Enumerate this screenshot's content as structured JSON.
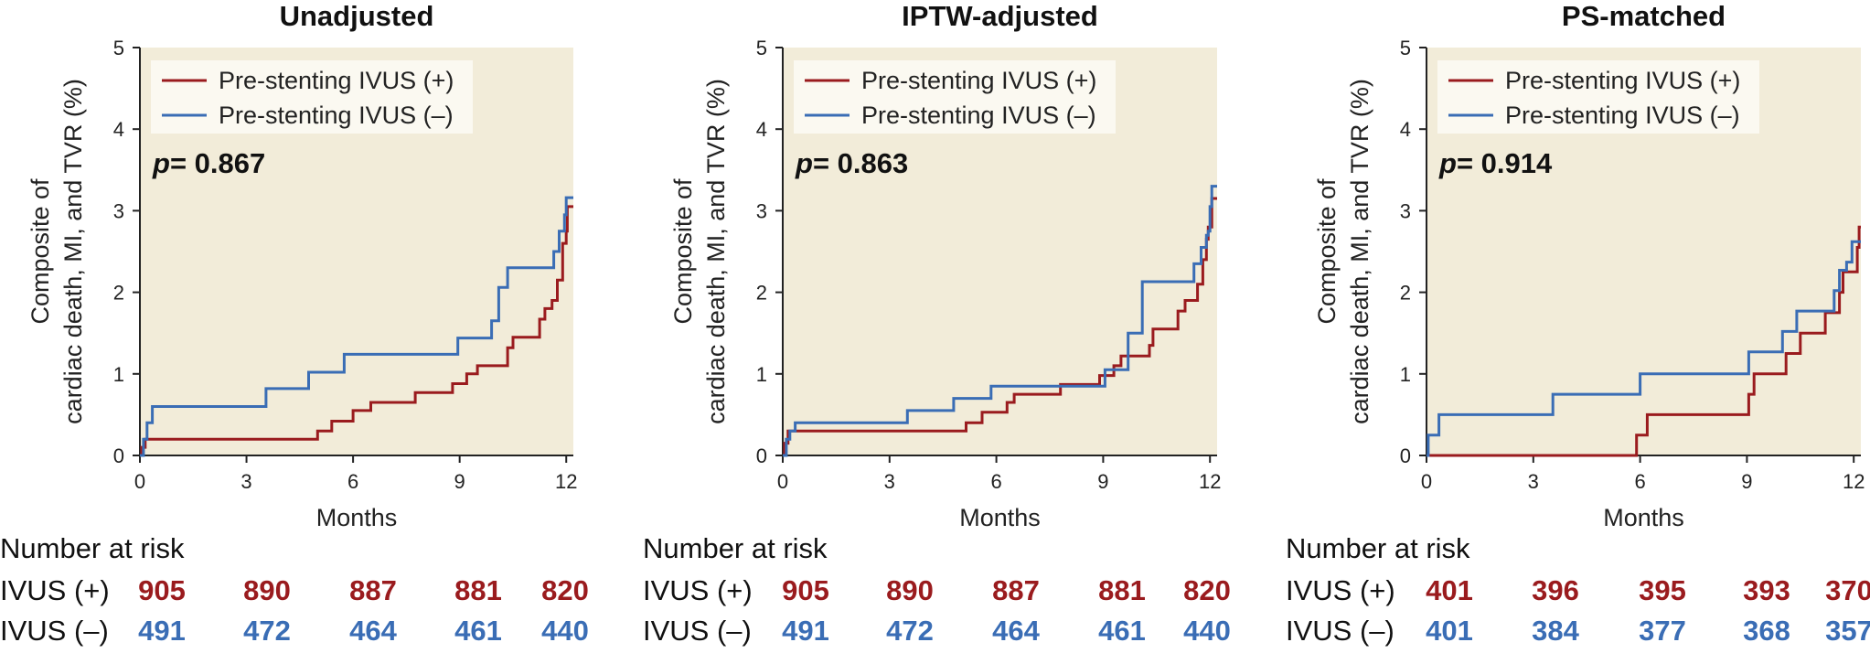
{
  "colors": {
    "ivus_pos": "#9a1b1e",
    "ivus_neg": "#3a6db5",
    "panel_bg": "#f2ecd9",
    "axis": "#222222"
  },
  "chart_data": [
    {
      "type": "line",
      "step": true,
      "title": "Unadjusted",
      "xlabel": "Months",
      "ylabel_lines": [
        "Composite of",
        "cardiac death, MI, and TVR (%)"
      ],
      "xlim": [
        0,
        12.2
      ],
      "ylim": [
        0,
        5
      ],
      "xticks": [
        0,
        3,
        6,
        9,
        12
      ],
      "yticks": [
        0,
        1,
        2,
        3,
        4,
        5
      ],
      "p_label": "p",
      "p_value": "= 0.867",
      "series": [
        {
          "name": "Pre-stenting IVUS (+)",
          "color_key": "ivus_pos",
          "points": [
            [
              0,
              0
            ],
            [
              0.05,
              0.1
            ],
            [
              0.15,
              0.2
            ],
            [
              4.95,
              0.2
            ],
            [
              5.0,
              0.3
            ],
            [
              5.35,
              0.3
            ],
            [
              5.4,
              0.42
            ],
            [
              5.95,
              0.42
            ],
            [
              6.0,
              0.55
            ],
            [
              6.45,
              0.55
            ],
            [
              6.5,
              0.65
            ],
            [
              7.7,
              0.65
            ],
            [
              7.75,
              0.77
            ],
            [
              8.75,
              0.77
            ],
            [
              8.8,
              0.88
            ],
            [
              9.15,
              0.88
            ],
            [
              9.2,
              1.0
            ],
            [
              9.45,
              1.0
            ],
            [
              9.5,
              1.1
            ],
            [
              10.3,
              1.1
            ],
            [
              10.35,
              1.32
            ],
            [
              10.45,
              1.32
            ],
            [
              10.5,
              1.45
            ],
            [
              11.2,
              1.45
            ],
            [
              11.25,
              1.67
            ],
            [
              11.35,
              1.67
            ],
            [
              11.4,
              1.8
            ],
            [
              11.55,
              1.8
            ],
            [
              11.6,
              1.9
            ],
            [
              11.7,
              1.9
            ],
            [
              11.75,
              2.15
            ],
            [
              11.85,
              2.15
            ],
            [
              11.9,
              2.6
            ],
            [
              11.95,
              2.6
            ],
            [
              12.0,
              2.75
            ],
            [
              12.03,
              3.05
            ],
            [
              12.2,
              3.05
            ]
          ]
        },
        {
          "name": "Pre-stenting IVUS (–)",
          "color_key": "ivus_neg",
          "points": [
            [
              0,
              0
            ],
            [
              0.1,
              0.2
            ],
            [
              0.2,
              0.4
            ],
            [
              0.3,
              0.4
            ],
            [
              0.35,
              0.6
            ],
            [
              3.5,
              0.6
            ],
            [
              3.55,
              0.82
            ],
            [
              4.7,
              0.82
            ],
            [
              4.75,
              1.02
            ],
            [
              5.7,
              1.02
            ],
            [
              5.75,
              1.24
            ],
            [
              8.9,
              1.24
            ],
            [
              8.95,
              1.44
            ],
            [
              9.85,
              1.44
            ],
            [
              9.9,
              1.65
            ],
            [
              10.05,
              1.65
            ],
            [
              10.1,
              2.06
            ],
            [
              10.3,
              2.06
            ],
            [
              10.35,
              2.3
            ],
            [
              11.6,
              2.3
            ],
            [
              11.65,
              2.5
            ],
            [
              11.75,
              2.5
            ],
            [
              11.8,
              2.75
            ],
            [
              11.9,
              2.75
            ],
            [
              11.95,
              2.95
            ],
            [
              12.0,
              3.16
            ],
            [
              12.2,
              3.16
            ]
          ]
        }
      ],
      "risk_table": {
        "heading": "Number at risk",
        "rows": [
          {
            "label": "IVUS (+)",
            "color_key": "ivus_pos",
            "values": [
              "905",
              "890",
              "887",
              "881",
              "820"
            ]
          },
          {
            "label": "IVUS (–)",
            "color_key": "ivus_neg",
            "values": [
              "491",
              "472",
              "464",
              "461",
              "440"
            ]
          }
        ]
      }
    },
    {
      "type": "line",
      "step": true,
      "title": "IPTW-adjusted",
      "xlabel": "Months",
      "ylabel_lines": [
        "Composite of",
        "cardiac death, MI, and TVR (%)"
      ],
      "xlim": [
        0,
        12.2
      ],
      "ylim": [
        0,
        5
      ],
      "xticks": [
        0,
        3,
        6,
        9,
        12
      ],
      "yticks": [
        0,
        1,
        2,
        3,
        4,
        5
      ],
      "p_label": "p",
      "p_value": "= 0.863",
      "series": [
        {
          "name": "Pre-stenting IVUS (+)",
          "color_key": "ivus_pos",
          "points": [
            [
              0,
              0
            ],
            [
              0.05,
              0.15
            ],
            [
              0.15,
              0.3
            ],
            [
              5.1,
              0.3
            ],
            [
              5.15,
              0.4
            ],
            [
              5.55,
              0.4
            ],
            [
              5.6,
              0.53
            ],
            [
              6.25,
              0.53
            ],
            [
              6.3,
              0.65
            ],
            [
              6.45,
              0.65
            ],
            [
              6.5,
              0.75
            ],
            [
              7.75,
              0.75
            ],
            [
              7.8,
              0.87
            ],
            [
              8.85,
              0.87
            ],
            [
              8.9,
              0.98
            ],
            [
              9.25,
              0.98
            ],
            [
              9.3,
              1.1
            ],
            [
              9.45,
              1.1
            ],
            [
              9.5,
              1.22
            ],
            [
              10.25,
              1.22
            ],
            [
              10.3,
              1.35
            ],
            [
              10.35,
              1.35
            ],
            [
              10.4,
              1.55
            ],
            [
              11.05,
              1.55
            ],
            [
              11.1,
              1.77
            ],
            [
              11.25,
              1.77
            ],
            [
              11.3,
              1.9
            ],
            [
              11.6,
              1.9
            ],
            [
              11.65,
              2.1
            ],
            [
              11.75,
              2.1
            ],
            [
              11.8,
              2.4
            ],
            [
              11.85,
              2.4
            ],
            [
              11.9,
              2.65
            ],
            [
              11.95,
              2.8
            ],
            [
              12.05,
              3.15
            ],
            [
              12.2,
              3.15
            ]
          ]
        },
        {
          "name": "Pre-stenting IVUS (–)",
          "color_key": "ivus_neg",
          "points": [
            [
              0,
              0
            ],
            [
              0.1,
              0.2
            ],
            [
              0.2,
              0.3
            ],
            [
              0.3,
              0.3
            ],
            [
              0.35,
              0.4
            ],
            [
              3.45,
              0.4
            ],
            [
              3.5,
              0.55
            ],
            [
              4.75,
              0.55
            ],
            [
              4.8,
              0.7
            ],
            [
              5.8,
              0.7
            ],
            [
              5.85,
              0.85
            ],
            [
              9.0,
              0.85
            ],
            [
              9.05,
              1.05
            ],
            [
              9.65,
              1.05
            ],
            [
              9.7,
              1.5
            ],
            [
              10.05,
              1.5
            ],
            [
              10.1,
              2.13
            ],
            [
              11.5,
              2.13
            ],
            [
              11.55,
              2.35
            ],
            [
              11.7,
              2.35
            ],
            [
              11.75,
              2.55
            ],
            [
              11.85,
              2.55
            ],
            [
              11.9,
              2.7
            ],
            [
              11.95,
              2.75
            ],
            [
              12.0,
              3.05
            ],
            [
              12.05,
              3.3
            ],
            [
              12.2,
              3.3
            ]
          ]
        }
      ],
      "risk_table": {
        "heading": "Number at risk",
        "rows": [
          {
            "label": "IVUS (+)",
            "color_key": "ivus_pos",
            "values": [
              "905",
              "890",
              "887",
              "881",
              "820"
            ]
          },
          {
            "label": "IVUS (–)",
            "color_key": "ivus_neg",
            "values": [
              "491",
              "472",
              "464",
              "461",
              "440"
            ]
          }
        ]
      }
    },
    {
      "type": "line",
      "step": true,
      "title": "PS-matched",
      "xlabel": "Months",
      "ylabel_lines": [
        "Composite of",
        "cardiac death, MI, and TVR (%)"
      ],
      "xlim": [
        0,
        12.2
      ],
      "ylim": [
        0,
        5
      ],
      "xticks": [
        0,
        3,
        6,
        9,
        12
      ],
      "yticks": [
        0,
        1,
        2,
        3,
        4,
        5
      ],
      "p_label": "p",
      "p_value": "= 0.914",
      "series": [
        {
          "name": "Pre-stenting IVUS (+)",
          "color_key": "ivus_pos",
          "points": [
            [
              0,
              0
            ],
            [
              5.85,
              0
            ],
            [
              5.9,
              0.25
            ],
            [
              6.15,
              0.25
            ],
            [
              6.2,
              0.5
            ],
            [
              9.0,
              0.5
            ],
            [
              9.05,
              0.75
            ],
            [
              9.15,
              0.75
            ],
            [
              9.2,
              1.0
            ],
            [
              10.05,
              1.0
            ],
            [
              10.1,
              1.25
            ],
            [
              10.45,
              1.25
            ],
            [
              10.5,
              1.5
            ],
            [
              11.15,
              1.5
            ],
            [
              11.2,
              1.75
            ],
            [
              11.55,
              1.75
            ],
            [
              11.6,
              2.0
            ],
            [
              11.65,
              2.0
            ],
            [
              11.7,
              2.25
            ],
            [
              12.05,
              2.25
            ],
            [
              12.1,
              2.55
            ],
            [
              12.15,
              2.8
            ],
            [
              12.2,
              2.8
            ]
          ]
        },
        {
          "name": "Pre-stenting IVUS (–)",
          "color_key": "ivus_neg",
          "points": [
            [
              0,
              0
            ],
            [
              0.05,
              0.25
            ],
            [
              0.3,
              0.25
            ],
            [
              0.35,
              0.5
            ],
            [
              3.5,
              0.5
            ],
            [
              3.55,
              0.75
            ],
            [
              5.95,
              0.75
            ],
            [
              6.0,
              1.0
            ],
            [
              9.0,
              1.0
            ],
            [
              9.05,
              1.27
            ],
            [
              9.95,
              1.27
            ],
            [
              10.0,
              1.52
            ],
            [
              10.35,
              1.52
            ],
            [
              10.4,
              1.77
            ],
            [
              11.4,
              1.77
            ],
            [
              11.45,
              2.02
            ],
            [
              11.55,
              2.02
            ],
            [
              11.6,
              2.27
            ],
            [
              11.75,
              2.27
            ],
            [
              11.8,
              2.37
            ],
            [
              11.9,
              2.37
            ],
            [
              11.95,
              2.62
            ],
            [
              12.2,
              2.62
            ]
          ]
        }
      ],
      "risk_table": {
        "heading": "Number at risk",
        "rows": [
          {
            "label": "IVUS (+)",
            "color_key": "ivus_pos",
            "values": [
              "401",
              "396",
              "395",
              "393",
              "370"
            ]
          },
          {
            "label": "IVUS (–)",
            "color_key": "ivus_neg",
            "values": [
              "401",
              "384",
              "377",
              "368",
              "357"
            ]
          }
        ]
      }
    }
  ]
}
